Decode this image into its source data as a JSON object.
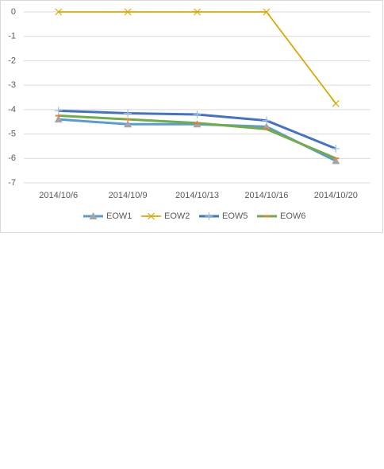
{
  "chart_data": {
    "type": "line",
    "categories": [
      "2014/10/6",
      "2014/10/9",
      "2014/10/13",
      "2014/10/16",
      "2014/10/20"
    ],
    "series": [
      {
        "name": "EOW1",
        "color": "#5b9bd5",
        "marker": "triangle",
        "marker_color": "#a5a5a5",
        "values": [
          -4.4,
          -4.6,
          -4.6,
          -4.7,
          -6.1
        ]
      },
      {
        "name": "EOW2",
        "color": "#d9a800",
        "marker": "x",
        "marker_color": "#d9a800",
        "values": [
          0,
          0,
          0,
          0,
          -3.75
        ]
      },
      {
        "name": "EOW5",
        "color": "#4472c4",
        "marker": "plus",
        "marker_color": "#9dc3e6",
        "values": [
          -4.05,
          -4.15,
          -4.2,
          -4.45,
          -5.6
        ]
      },
      {
        "name": "EOW6",
        "color": "#70ad47",
        "marker": "dash",
        "marker_color": "#ed7d31",
        "values": [
          -4.25,
          -4.4,
          -4.55,
          -4.8,
          -6.0
        ]
      }
    ],
    "ylim": [
      -7,
      0
    ],
    "yticks": [
      0,
      -1,
      -2,
      -3,
      -4,
      -5,
      -6,
      -7
    ],
    "grid": true,
    "legend": "bottom"
  }
}
